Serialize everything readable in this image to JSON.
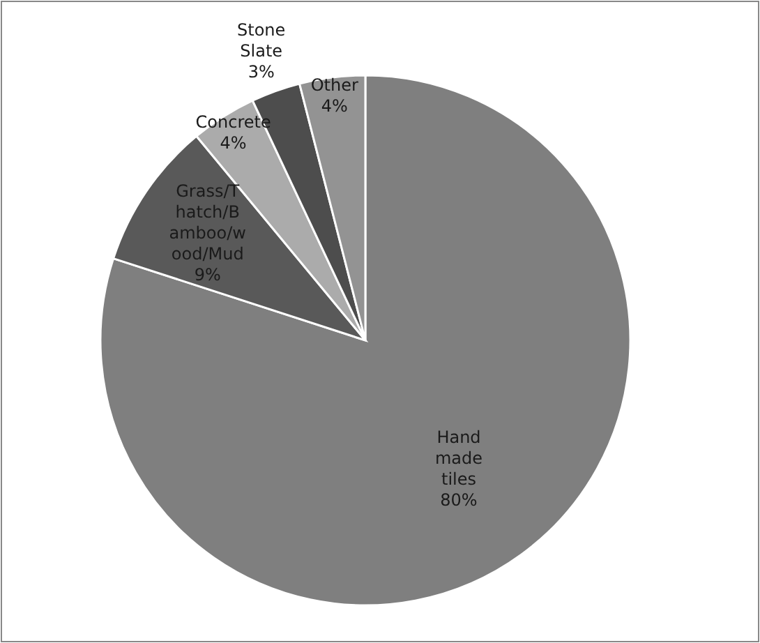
{
  "chart_data": {
    "type": "pie",
    "categories": [
      "Hand made tiles",
      "Grass/Thatch/Bamboo/wood/Mud",
      "Concrete",
      "Stone Slate",
      "Other"
    ],
    "values": [
      80,
      9,
      4,
      3,
      4
    ],
    "value_labels": [
      "80%",
      "9%",
      "4%",
      "3%",
      "4%"
    ],
    "colors": [
      "#7f7f7f",
      "#595959",
      "#ababab",
      "#4d4d4d",
      "#939393"
    ]
  }
}
